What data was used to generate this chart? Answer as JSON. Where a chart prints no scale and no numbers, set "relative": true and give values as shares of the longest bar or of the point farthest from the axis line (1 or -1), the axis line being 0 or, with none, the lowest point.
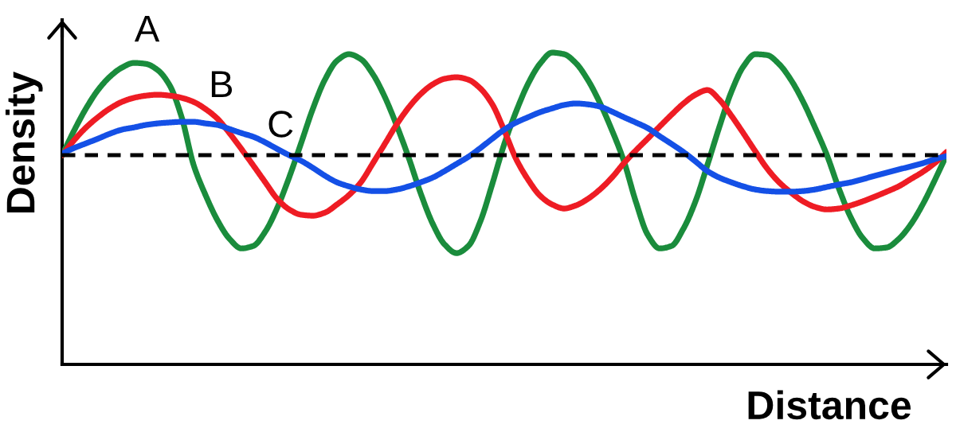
{
  "chart_data": {
    "type": "line",
    "relative": true,
    "xlabel": "Distance",
    "ylabel": "Density",
    "categories": [
      null,
      null,
      null,
      null,
      null,
      null,
      null,
      null,
      null,
      null,
      null,
      null,
      null,
      null,
      null,
      null,
      null,
      null,
      null,
      null,
      null,
      null,
      null,
      null,
      null,
      null,
      null,
      null,
      null,
      null,
      null,
      null,
      null,
      null,
      null,
      null,
      null,
      null,
      null,
      null,
      null,
      null,
      null,
      null,
      null,
      null,
      null,
      null,
      null,
      null,
      null,
      null,
      null,
      null,
      null,
      null,
      null,
      null,
      null,
      null,
      null,
      null,
      null,
      null,
      null,
      null,
      null,
      null,
      null,
      null,
      null,
      null,
      null,
      null,
      null
    ],
    "series": [
      {
        "name": "A",
        "color": "#1a8c3c",
        "values": [
          0.671,
          0.75,
          0.821,
          0.88,
          0.923,
          0.952,
          0.967,
          0.964,
          0.944,
          0.895,
          0.793,
          0.64,
          0.543,
          0.462,
          0.403,
          0.372,
          0.38,
          0.426,
          0.502,
          0.6,
          0.71,
          0.822,
          0.914,
          0.974,
          0.995,
          0.979,
          0.931,
          0.858,
          0.766,
          0.663,
          0.549,
          0.452,
          0.385,
          0.357,
          0.38,
          0.459,
          0.579,
          0.707,
          0.812,
          0.901,
          0.965,
          1.0,
          0.995,
          0.966,
          0.912,
          0.839,
          0.752,
          0.653,
          0.523,
          0.416,
          0.372,
          0.38,
          0.436,
          0.523,
          0.64,
          0.762,
          0.874,
          0.955,
          0.995,
          0.992,
          0.963,
          0.912,
          0.843,
          0.76,
          0.671,
          0.564,
          0.471,
          0.405,
          0.372,
          0.375,
          0.402,
          0.448,
          0.512,
          0.589,
          0.671
        ]
      },
      {
        "name": "B",
        "color": "#ee1c24",
        "values": [
          0.671,
          0.719,
          0.76,
          0.793,
          0.821,
          0.842,
          0.855,
          0.862,
          0.865,
          0.862,
          0.855,
          0.842,
          0.819,
          0.788,
          0.742,
          0.691,
          0.638,
          0.584,
          0.531,
          0.497,
          0.48,
          0.477,
          0.487,
          0.513,
          0.543,
          0.584,
          0.645,
          0.707,
          0.77,
          0.824,
          0.867,
          0.898,
          0.916,
          0.921,
          0.913,
          0.885,
          0.834,
          0.75,
          0.658,
          0.592,
          0.541,
          0.513,
          0.5,
          0.51,
          0.531,
          0.561,
          0.599,
          0.645,
          0.686,
          0.724,
          0.763,
          0.801,
          0.837,
          0.865,
          0.88,
          0.849,
          0.798,
          0.742,
          0.684,
          0.628,
          0.584,
          0.551,
          0.523,
          0.505,
          0.497,
          0.5,
          0.51,
          0.523,
          0.538,
          0.554,
          0.571,
          0.594,
          0.617,
          0.645,
          0.681
        ]
      },
      {
        "name": "C",
        "color": "#1450e6",
        "values": [
          0.676,
          0.694,
          0.709,
          0.724,
          0.74,
          0.753,
          0.76,
          0.768,
          0.773,
          0.776,
          0.778,
          0.778,
          0.773,
          0.768,
          0.755,
          0.742,
          0.73,
          0.712,
          0.691,
          0.671,
          0.653,
          0.63,
          0.605,
          0.584,
          0.571,
          0.561,
          0.556,
          0.556,
          0.561,
          0.571,
          0.584,
          0.599,
          0.62,
          0.643,
          0.666,
          0.694,
          0.724,
          0.753,
          0.776,
          0.793,
          0.809,
          0.821,
          0.832,
          0.837,
          0.834,
          0.827,
          0.811,
          0.793,
          0.776,
          0.758,
          0.732,
          0.707,
          0.681,
          0.651,
          0.62,
          0.599,
          0.584,
          0.571,
          0.561,
          0.556,
          0.554,
          0.554,
          0.556,
          0.561,
          0.569,
          0.577,
          0.584,
          0.594,
          0.605,
          0.615,
          0.625,
          0.635,
          0.645,
          0.658,
          0.668
        ]
      }
    ],
    "ref_lines": [
      {
        "axis": "y",
        "value": 0.671,
        "color": "#000000",
        "line_style": "dashed"
      }
    ]
  }
}
